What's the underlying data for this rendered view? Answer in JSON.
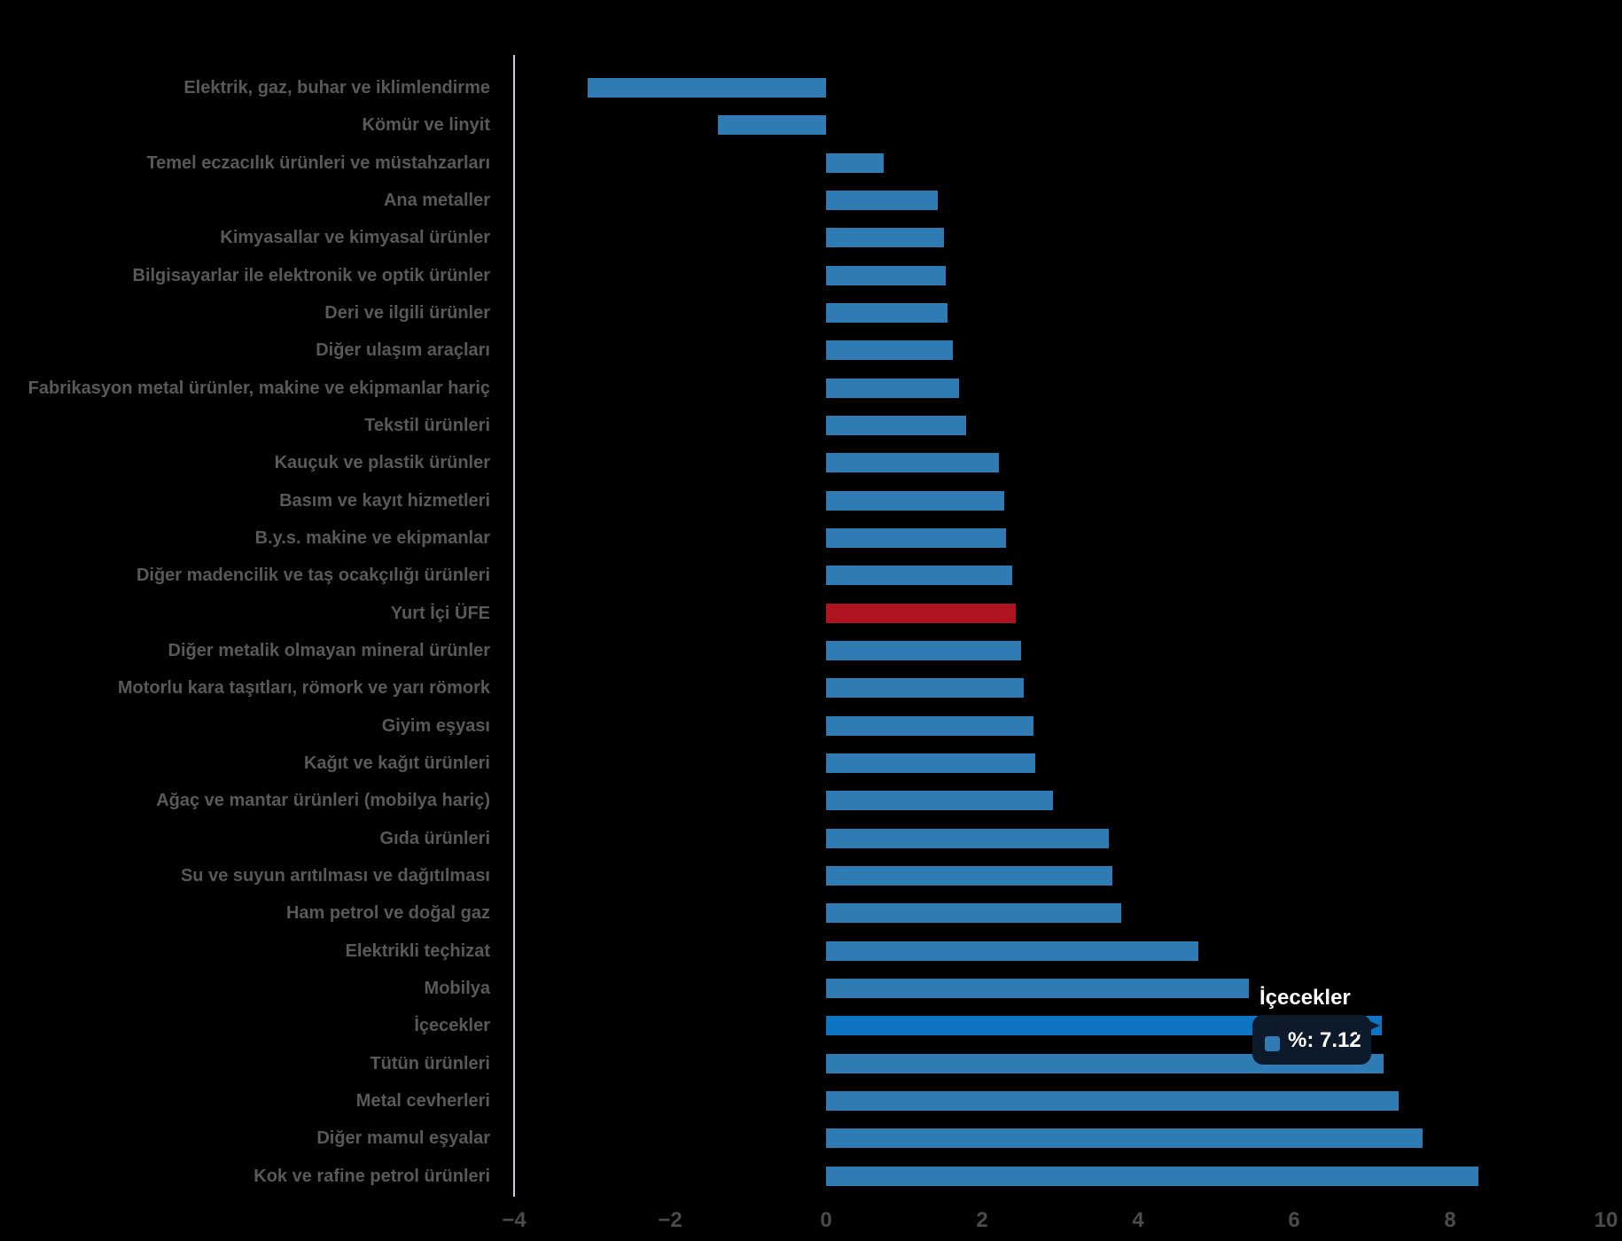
{
  "page": {
    "background": "#000000"
  },
  "chart_data": {
    "type": "bar",
    "orientation": "horizontal",
    "title": "",
    "xlabel": "",
    "ylabel": "",
    "categories": [
      "Elektrik, gaz, buhar ve iklimlendirme",
      "Kömür ve linyit",
      "Temel eczacılık ürünleri ve müstahzarları",
      "Ana metaller",
      "Kimyasallar ve kimyasal ürünler",
      "Bilgisayarlar ile elektronik ve optik ürünler",
      "Deri ve ilgili ürünler",
      "Diğer ulaşım araçları",
      "Fabrikasyon metal ürünler, makine ve ekipmanlar hariç",
      "Tekstil ürünleri",
      "Kauçuk ve plastik ürünler",
      "Basım ve kayıt hizmetleri",
      "B.y.s. makine ve ekipmanlar",
      "Diğer madencilik ve taş ocakçılığı ürünleri",
      "Yurt İçi ÜFE",
      "Diğer metalik olmayan mineral ürünler",
      "Motorlu kara taşıtları, römork ve yarı römork",
      "Giyim eşyası",
      "Kağıt ve kağıt ürünleri",
      "Ağaç ve mantar ürünleri (mobilya hariç)",
      "Gıda ürünleri",
      "Su ve suyun arıtılması ve dağıtılması",
      "Ham petrol ve doğal gaz",
      "Elektrikli teçhizat",
      "Mobilya",
      "İçecekler",
      "Tütün ürünleri",
      "Metal cevherleri",
      "Diğer mamul eşyalar",
      "Kok ve rafine petrol ürünleri"
    ],
    "values": [
      -3.06,
      -1.39,
      0.74,
      1.43,
      1.51,
      1.53,
      1.56,
      1.63,
      1.7,
      1.8,
      2.22,
      2.28,
      2.31,
      2.39,
      2.43,
      2.5,
      2.53,
      2.66,
      2.68,
      2.91,
      3.63,
      3.67,
      3.78,
      4.77,
      5.42,
      7.12,
      7.15,
      7.34,
      7.65,
      8.36
    ],
    "highlight_category": "Yurt İçi ÜFE",
    "hovered_category": "İçecekler",
    "xlim": [
      -4,
      10
    ],
    "x_ticks": [
      -4,
      -2,
      0,
      2,
      4,
      6,
      8,
      10
    ],
    "x_tick_labels": [
      "−4",
      "−2",
      "0",
      "2",
      "4",
      "6",
      "8",
      "10"
    ],
    "grid": false,
    "legend": "none",
    "colors": {
      "bar": "#2f7cb5",
      "bar_hover": "#0e75c5",
      "highlight": "#b0151f",
      "axis_line": "#c5cfdd",
      "label_text": "#595959",
      "tick_text": "#4b4b4b",
      "background": "#000000"
    }
  },
  "tooltip": {
    "title": "İçecekler",
    "value_label": "%: 7.12",
    "swatch_color": "#2f7cb5",
    "background": "#0c1a2c",
    "text_color": "#ffffff"
  }
}
